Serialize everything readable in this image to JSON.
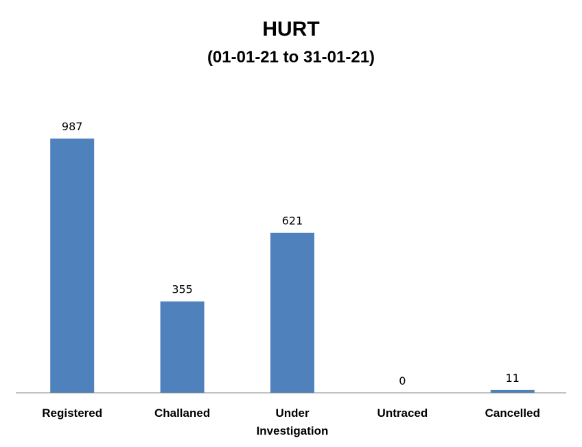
{
  "chart_data": {
    "type": "bar",
    "title": "HURT",
    "subtitle": "(01-01-21 to 31-01-21)",
    "categories": [
      "Registered",
      "Challaned",
      "Under Investigation",
      "Untraced",
      "Cancelled"
    ],
    "category_lines": [
      [
        "Registered"
      ],
      [
        "Challaned"
      ],
      [
        "Under",
        "Investigation"
      ],
      [
        "Untraced"
      ],
      [
        "Cancelled"
      ]
    ],
    "values": [
      987,
      355,
      621,
      0,
      11
    ],
    "value_labels": [
      "987",
      "355",
      "621",
      "0",
      "11"
    ],
    "ylim": [
      0,
      1000
    ],
    "bar_color": "#4f81bd",
    "axis_color": "#868686",
    "grid": false,
    "legend": "none"
  }
}
